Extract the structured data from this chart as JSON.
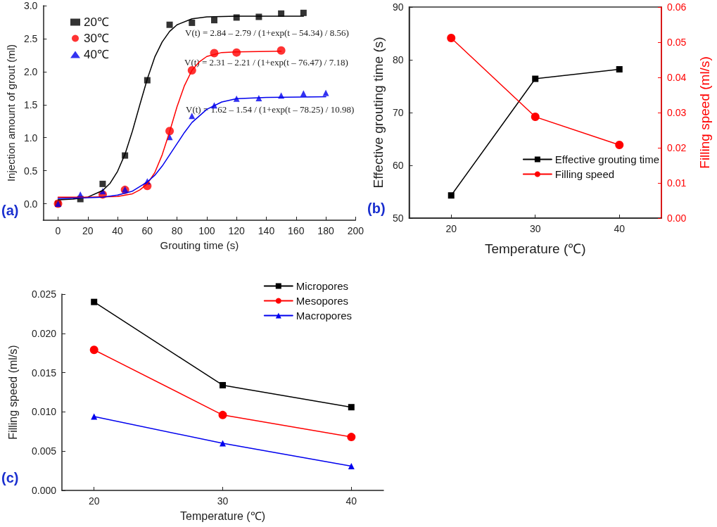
{
  "chart_data": [
    {
      "type": "scatter",
      "xlabel": "Grouting time (s)",
      "ylabel": "Injection amount of grout (ml)",
      "xlim": [
        -10,
        200
      ],
      "xticks": [
        0,
        20,
        40,
        60,
        80,
        100,
        120,
        140,
        160,
        180,
        200
      ],
      "ylim": [
        -0.25,
        3.0
      ],
      "yticks": [
        {
          "value": 0,
          "label": "0.0"
        },
        0.5,
        {
          "value": 1,
          "label": "1.0"
        },
        1.5,
        {
          "value": 2,
          "label": "2.0"
        },
        2.5,
        {
          "value": 3,
          "label": "3.0"
        }
      ],
      "legend": "top left",
      "series": [
        {
          "name": "20℃",
          "color": "#000000",
          "marker": "square",
          "x": [
            0,
            15,
            30,
            45,
            60,
            75,
            90,
            105,
            120,
            135,
            150,
            165
          ],
          "values": [
            0.0,
            0.07,
            0.3,
            0.73,
            1.87,
            2.71,
            2.74,
            2.78,
            2.82,
            2.83,
            2.88,
            2.89
          ]
        },
        {
          "name": "30℃",
          "color": "#ff0000",
          "marker": "circle",
          "x": [
            0,
            30,
            45,
            60,
            75,
            90,
            105,
            120,
            150
          ],
          "values": [
            0.0,
            0.14,
            0.21,
            0.27,
            1.1,
            2.02,
            2.28,
            2.29,
            2.32
          ]
        },
        {
          "name": "40℃",
          "color": "#0000ee",
          "marker": "triangle",
          "x": [
            0,
            15,
            30,
            45,
            60,
            75,
            90,
            105,
            120,
            135,
            150,
            165,
            180
          ],
          "values": [
            0.0,
            0.14,
            0.19,
            0.22,
            0.34,
            1.01,
            1.33,
            1.49,
            1.59,
            1.6,
            1.64,
            1.67,
            1.68
          ]
        },
        {
          "type": "line",
          "color": "#000000",
          "marker": "none",
          "x": [
            0,
            10,
            20,
            30,
            35,
            40,
            45,
            50,
            55,
            60,
            65,
            70,
            75,
            80,
            90,
            100,
            120,
            165
          ],
          "values": [
            0.06,
            0.07,
            0.1,
            0.2,
            0.31,
            0.49,
            0.75,
            1.1,
            1.5,
            1.89,
            2.22,
            2.45,
            2.61,
            2.71,
            2.8,
            2.83,
            2.84,
            2.84
          ]
        },
        {
          "type": "line",
          "color": "#ff0000",
          "marker": "none",
          "x": [
            0,
            20,
            40,
            50,
            55,
            60,
            65,
            70,
            75,
            80,
            85,
            90,
            95,
            100,
            110,
            120,
            150
          ],
          "values": [
            0.1,
            0.1,
            0.11,
            0.15,
            0.21,
            0.3,
            0.47,
            0.74,
            1.09,
            1.47,
            1.79,
            2.02,
            2.15,
            2.23,
            2.29,
            2.3,
            2.31
          ]
        },
        {
          "type": "line",
          "color": "#0000ee",
          "marker": "none",
          "x": [
            0,
            20,
            30,
            40,
            50,
            60,
            65,
            70,
            75,
            80,
            85,
            90,
            100,
            110,
            120,
            140,
            180
          ],
          "values": [
            0.08,
            0.09,
            0.1,
            0.13,
            0.19,
            0.33,
            0.43,
            0.57,
            0.74,
            0.91,
            1.08,
            1.23,
            1.43,
            1.54,
            1.59,
            1.61,
            1.62
          ]
        }
      ],
      "annotations": [
        "(a)",
        "V(t) = 2.84 – 2.79 / (1+exp(t – 54.34) / 8.56)",
        "V(t) = 2.31 – 2.21 / (1+exp(t – 76.47) / 7.18)",
        "V(t) = 1.62 – 1.54 / (1+exp(t – 78.25) / 10.98)"
      ]
    },
    {
      "type": "line",
      "xlabel": "Temperature (℃)",
      "ylabel": "Effective grouting time (s)",
      "y2label": "Filling speed (ml/s)",
      "x": [
        20,
        30,
        40
      ],
      "xlim": [
        15,
        45
      ],
      "xticks": [
        20,
        30,
        40
      ],
      "ylim": [
        50,
        90
      ],
      "yticks": [
        50,
        60,
        70,
        80,
        90
      ],
      "y2lim": [
        0,
        0.06
      ],
      "y2ticks": [
        {
          "value": 0,
          "label": "0.00"
        },
        0.01,
        0.02,
        0.03,
        0.04,
        0.05,
        0.06
      ],
      "legend": "bottom right",
      "series": [
        {
          "name": "Effective grouting time",
          "color": "#000000",
          "marker": "square",
          "values": [
            54.3,
            76.4,
            78.2
          ]
        },
        {
          "name": "Filling speed",
          "color": "#ff0000",
          "marker": "circle",
          "axis": "y2",
          "values": [
            0.0512,
            0.0288,
            0.0208
          ]
        }
      ],
      "annotations": [
        "(b)"
      ]
    },
    {
      "type": "line",
      "xlabel": "Temperature (℃)",
      "ylabel": "Filling speed (ml/s)",
      "x": [
        20,
        30,
        40
      ],
      "xlim": [
        17.5,
        42.5
      ],
      "xticks": [
        20,
        30,
        40
      ],
      "ylim": [
        0,
        0.025
      ],
      "yticks": [
        {
          "value": 0,
          "label": "0.000"
        },
        0.005,
        {
          "value": 0.01,
          "label": "0.010"
        },
        0.015,
        {
          "value": 0.02,
          "label": "0.020"
        },
        0.025
      ],
      "legend": "top right",
      "series": [
        {
          "name": "Micropores",
          "color": "#000000",
          "marker": "square",
          "values": [
            0.024,
            0.0134,
            0.0106
          ]
        },
        {
          "name": "Mesopores",
          "color": "#ff0000",
          "marker": "circle",
          "values": [
            0.0179,
            0.0096,
            0.0068
          ]
        },
        {
          "name": "Macropores",
          "color": "#0000ee",
          "marker": "triangle",
          "values": [
            0.0094,
            0.006,
            0.0031
          ]
        }
      ],
      "annotations": [
        "(c)"
      ]
    }
  ]
}
